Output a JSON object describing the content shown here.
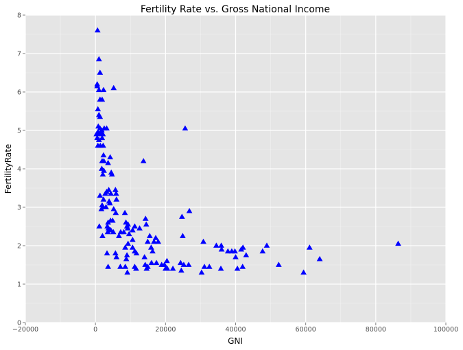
{
  "chart_data": {
    "type": "scatter",
    "title": "Fertility Rate vs. Gross National Income",
    "xlabel": "GNI",
    "ylabel": "FertilityRate",
    "xlim": [
      -20000,
      100000
    ],
    "ylim": [
      0,
      8
    ],
    "x_ticks": [
      -20000,
      0,
      20000,
      40000,
      60000,
      80000,
      100000
    ],
    "y_ticks": [
      0,
      1,
      2,
      3,
      4,
      5,
      6,
      7,
      8
    ],
    "x_tick_labels": [
      "−20000",
      "0",
      "20000",
      "40000",
      "60000",
      "80000",
      "100000"
    ],
    "y_tick_labels": [
      "0",
      "1",
      "2",
      "3",
      "4",
      "5",
      "6",
      "7",
      "8"
    ],
    "grid": true,
    "marker": "triangle",
    "marker_color": "#0000ff",
    "background_color": "#e5e5e5",
    "points": [
      [
        600,
        7.6
      ],
      [
        1000,
        6.85
      ],
      [
        1300,
        6.5
      ],
      [
        500,
        6.2
      ],
      [
        500,
        6.15
      ],
      [
        1000,
        6.05
      ],
      [
        2300,
        6.05
      ],
      [
        5200,
        6.1
      ],
      [
        1300,
        5.8
      ],
      [
        1900,
        5.8
      ],
      [
        700,
        5.55
      ],
      [
        1000,
        5.4
      ],
      [
        1300,
        5.35
      ],
      [
        800,
        5.1
      ],
      [
        1300,
        5.05
      ],
      [
        1800,
        5.0
      ],
      [
        2500,
        5.05
      ],
      [
        3200,
        5.05
      ],
      [
        300,
        4.9
      ],
      [
        700,
        4.95
      ],
      [
        1100,
        4.9
      ],
      [
        1600,
        4.95
      ],
      [
        2100,
        4.9
      ],
      [
        500,
        4.8
      ],
      [
        1000,
        4.75
      ],
      [
        1900,
        4.8
      ],
      [
        700,
        4.6
      ],
      [
        1400,
        4.6
      ],
      [
        2200,
        4.6
      ],
      [
        2300,
        4.35
      ],
      [
        1900,
        4.2
      ],
      [
        2400,
        4.2
      ],
      [
        3600,
        4.15
      ],
      [
        4200,
        4.3
      ],
      [
        1800,
        4.0
      ],
      [
        2400,
        3.95
      ],
      [
        2100,
        3.85
      ],
      [
        4500,
        3.9
      ],
      [
        4700,
        3.85
      ],
      [
        25600,
        5.05
      ],
      [
        13700,
        4.2
      ],
      [
        3200,
        3.4
      ],
      [
        3800,
        3.45
      ],
      [
        5700,
        3.45
      ],
      [
        2800,
        3.35
      ],
      [
        4400,
        3.35
      ],
      [
        5900,
        3.35
      ],
      [
        1300,
        3.3
      ],
      [
        2300,
        3.2
      ],
      [
        3900,
        3.15
      ],
      [
        4100,
        3.1
      ],
      [
        6000,
        3.2
      ],
      [
        1900,
        3.05
      ],
      [
        2200,
        3.0
      ],
      [
        3000,
        3.0
      ],
      [
        5200,
        2.95
      ],
      [
        1700,
        2.95
      ],
      [
        5800,
        2.85
      ],
      [
        8400,
        2.85
      ],
      [
        24700,
        2.75
      ],
      [
        26800,
        2.9
      ],
      [
        14300,
        2.7
      ],
      [
        3600,
        2.6
      ],
      [
        4300,
        2.65
      ],
      [
        4900,
        2.65
      ],
      [
        8700,
        2.6
      ],
      [
        9300,
        2.55
      ],
      [
        3400,
        2.5
      ],
      [
        9000,
        2.5
      ],
      [
        11200,
        2.5
      ],
      [
        14500,
        2.55
      ],
      [
        1100,
        2.5
      ],
      [
        3700,
        2.45
      ],
      [
        4200,
        2.4
      ],
      [
        9200,
        2.45
      ],
      [
        10600,
        2.4
      ],
      [
        12600,
        2.45
      ],
      [
        3500,
        2.35
      ],
      [
        5100,
        2.35
      ],
      [
        7200,
        2.35
      ],
      [
        9600,
        2.3
      ],
      [
        8100,
        2.35
      ],
      [
        4400,
        2.4
      ],
      [
        2000,
        2.25
      ],
      [
        6700,
        2.25
      ],
      [
        15500,
        2.25
      ],
      [
        17200,
        2.2
      ],
      [
        24900,
        2.25
      ],
      [
        10600,
        2.15
      ],
      [
        9300,
        2.05
      ],
      [
        14900,
        2.1
      ],
      [
        16700,
        2.1
      ],
      [
        17900,
        2.1
      ],
      [
        30800,
        2.1
      ],
      [
        34500,
        2.0
      ],
      [
        35900,
        2.0
      ],
      [
        48900,
        2.0
      ],
      [
        8500,
        1.95
      ],
      [
        10600,
        1.95
      ],
      [
        15900,
        1.95
      ],
      [
        61100,
        1.95
      ],
      [
        86400,
        2.05
      ],
      [
        36000,
        1.9
      ],
      [
        37800,
        1.85
      ],
      [
        38900,
        1.85
      ],
      [
        39800,
        1.85
      ],
      [
        41600,
        1.9
      ],
      [
        42100,
        1.95
      ],
      [
        11200,
        1.85
      ],
      [
        16300,
        1.85
      ],
      [
        47700,
        1.85
      ],
      [
        3300,
        1.8
      ],
      [
        5700,
        1.8
      ],
      [
        11700,
        1.8
      ],
      [
        43000,
        1.75
      ],
      [
        6000,
        1.7
      ],
      [
        9000,
        1.75
      ],
      [
        14000,
        1.7
      ],
      [
        40000,
        1.7
      ],
      [
        64000,
        1.65
      ],
      [
        8800,
        1.65
      ],
      [
        20400,
        1.6
      ],
      [
        17400,
        1.55
      ],
      [
        24300,
        1.55
      ],
      [
        14200,
        1.5
      ],
      [
        16000,
        1.55
      ],
      [
        18900,
        1.5
      ],
      [
        19700,
        1.5
      ],
      [
        25200,
        1.5
      ],
      [
        26600,
        1.5
      ],
      [
        31100,
        1.45
      ],
      [
        32500,
        1.45
      ],
      [
        52300,
        1.5
      ],
      [
        3600,
        1.45
      ],
      [
        7100,
        1.45
      ],
      [
        8500,
        1.45
      ],
      [
        11200,
        1.45
      ],
      [
        14900,
        1.45
      ],
      [
        11600,
        1.4
      ],
      [
        14600,
        1.4
      ],
      [
        20000,
        1.4
      ],
      [
        22100,
        1.4
      ],
      [
        35800,
        1.4
      ],
      [
        40500,
        1.4
      ],
      [
        42000,
        1.45
      ],
      [
        20500,
        1.4
      ],
      [
        24500,
        1.35
      ],
      [
        30300,
        1.3
      ],
      [
        59400,
        1.3
      ],
      [
        9100,
        1.3
      ]
    ]
  }
}
